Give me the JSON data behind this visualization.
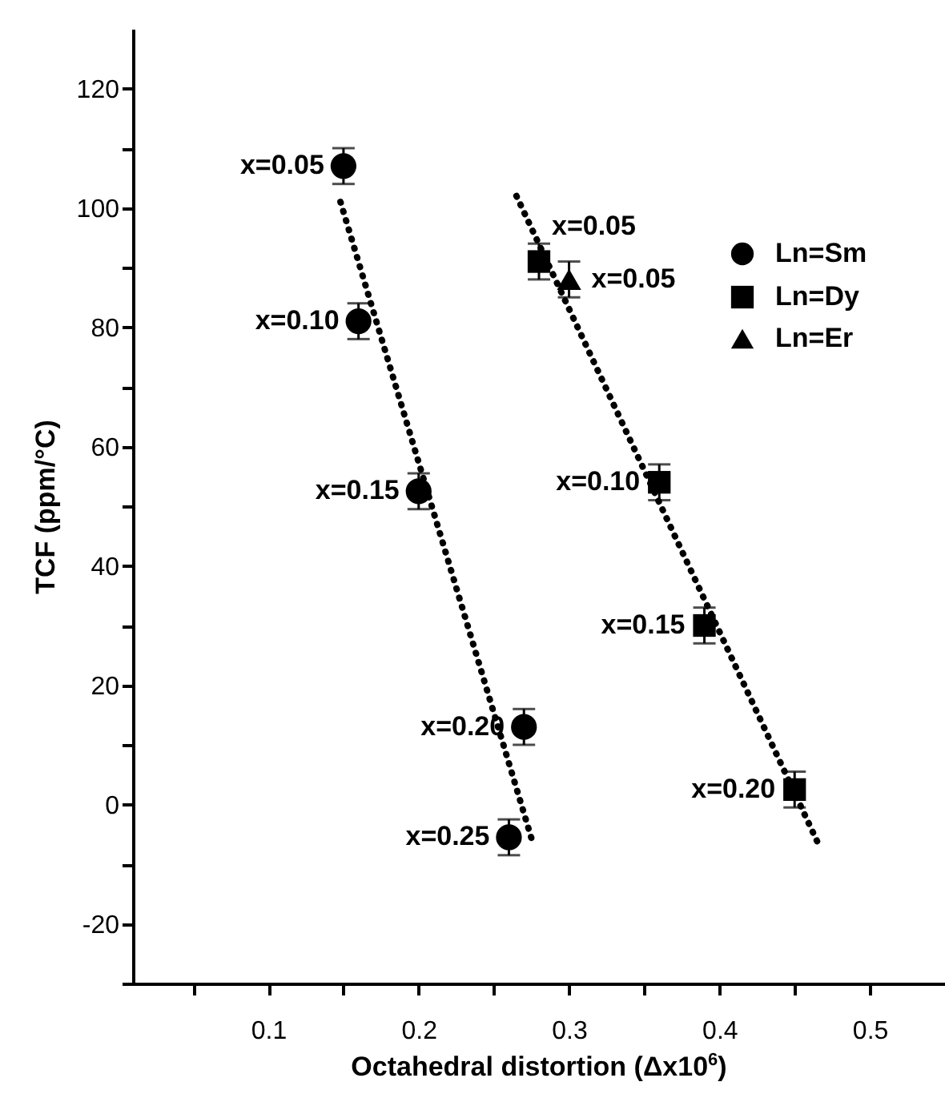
{
  "chart_data": {
    "type": "scatter",
    "xlabel": "Octahedral distortion (Δx10$^{6}$)",
    "ylabel": "TCF (ppm/°C)",
    "xlim": [
      0.01,
      0.55
    ],
    "ylim": [
      -30,
      130
    ],
    "xticks": [
      {
        "value": 0.05,
        "label": null
      },
      0.1,
      {
        "value": 0.15,
        "label": null
      },
      0.2,
      {
        "value": 0.25,
        "label": null
      },
      0.3,
      {
        "value": 0.35,
        "label": null
      },
      0.4,
      {
        "value": 0.45,
        "label": null
      },
      0.5
    ],
    "yticks": [
      {
        "value": -30,
        "label": null
      },
      -20,
      {
        "value": -10,
        "label": null
      },
      0,
      {
        "value": 10,
        "label": null
      },
      20,
      {
        "value": 30,
        "label": null
      },
      40,
      {
        "value": 50,
        "label": null
      },
      60,
      {
        "value": 70,
        "label": null
      },
      80,
      {
        "value": 90,
        "label": null
      },
      100,
      {
        "value": 110,
        "label": null
      },
      120
    ],
    "grid": false,
    "legend": "top right",
    "series": [
      {
        "name": "Ln=Sm",
        "marker": "circle",
        "color": "#000000",
        "x": [
          0.15,
          0.16,
          0.2,
          0.27,
          0.26
        ],
        "values": [
          107,
          81,
          52.5,
          13,
          -5.5
        ],
        "errors": [
          3,
          3,
          3,
          3,
          3
        ]
      },
      {
        "name": "Ln=Dy",
        "marker": "square",
        "color": "#000000",
        "x": [
          0.28,
          0.36,
          0.39,
          0.45
        ],
        "values": [
          91,
          54,
          30,
          2.5
        ],
        "errors": [
          3,
          3,
          3,
          3
        ]
      },
      {
        "name": "Ln=Er",
        "marker": "triangle",
        "color": "#000000",
        "x": [
          0.3
        ],
        "values": [
          88
        ],
        "errors": [
          3
        ]
      },
      {
        "type": "line",
        "marker": "none",
        "line_style": "dotted",
        "color": "#000000",
        "x": [
          0.148,
          0.276
        ],
        "values": [
          101,
          -6.5
        ]
      },
      {
        "type": "line",
        "marker": "none",
        "line_style": "dotted",
        "color": "#000000",
        "x": [
          0.265,
          0.465
        ],
        "values": [
          102,
          -6.2
        ]
      }
    ],
    "annotations": [
      {
        "text": "x=0.05",
        "x": 0.15,
        "y": 107
      },
      {
        "text": "x=0.10",
        "x": 0.16,
        "y": 81
      },
      {
        "text": "x=0.15",
        "x": 0.2,
        "y": 52.5
      },
      {
        "text": "x=0.20",
        "x": 0.27,
        "y": 13
      },
      {
        "text": "x=0.25",
        "x": 0.26,
        "y": -5.5
      },
      {
        "text": "x=0.05",
        "x": 0.28,
        "y": 91
      },
      {
        "text": "x=0.10",
        "x": 0.36,
        "y": 54
      },
      {
        "text": "x=0.15",
        "x": 0.39,
        "y": 30
      },
      {
        "text": "x=0.20",
        "x": 0.45,
        "y": 2.5
      },
      {
        "text": "x=0.05",
        "x": 0.3,
        "y": 88
      }
    ]
  }
}
